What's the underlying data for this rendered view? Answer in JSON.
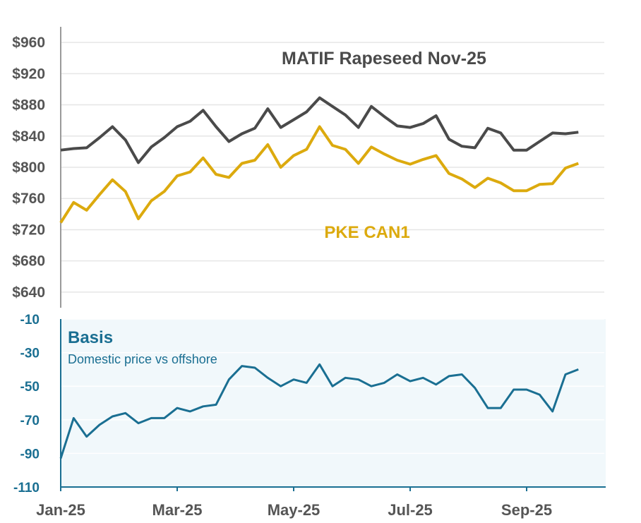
{
  "colors": {
    "matif": "#4a4a4a",
    "pke": "#dcaa0e",
    "basis": "#1a6f92",
    "basis_panel": "#f1f8fb",
    "grid": "#e6e6e6",
    "axis": "#9a9a9a",
    "tick_text": "#555555"
  },
  "chart_data": [
    {
      "type": "line",
      "panel": "prices",
      "title": "",
      "ylim": [
        620,
        980
      ],
      "y_ticks": [
        640,
        680,
        720,
        760,
        800,
        840,
        880,
        920,
        960
      ],
      "y_tick_labels": [
        "$640",
        "$680",
        "$720",
        "$760",
        "$800",
        "$840",
        "$880",
        "$920",
        "$960"
      ],
      "x_index_range": [
        0,
        42
      ],
      "series": [
        {
          "name": "MATIF Rapeseed Nov-25",
          "color_key": "matif",
          "values": [
            822,
            824,
            825,
            838,
            852,
            835,
            806,
            826,
            838,
            852,
            859,
            873,
            852,
            833,
            843,
            850,
            875,
            851,
            861,
            871,
            889,
            878,
            867,
            851,
            878,
            865,
            853,
            851,
            856,
            866,
            836,
            827,
            825,
            850,
            844,
            822,
            822,
            833,
            844,
            843,
            845
          ]
        },
        {
          "name": "PKE CAN1",
          "color_key": "pke",
          "values": [
            729,
            755,
            745,
            765,
            784,
            769,
            734,
            757,
            769,
            789,
            794,
            812,
            791,
            787,
            805,
            809,
            829,
            800,
            815,
            823,
            852,
            828,
            823,
            805,
            826,
            817,
            809,
            804,
            810,
            815,
            792,
            785,
            774,
            786,
            780,
            770,
            770,
            778,
            779,
            799,
            805
          ]
        }
      ]
    },
    {
      "type": "area",
      "panel": "basis",
      "title": "Basis",
      "subtitle": "Domestic price vs offshore",
      "ylim": [
        -110,
        -10
      ],
      "y_ticks": [
        -110,
        -90,
        -70,
        -50,
        -30,
        -10
      ],
      "y_tick_labels": [
        "-110",
        "-90",
        "-70",
        "-50",
        "-30",
        "-10"
      ],
      "x_index_range": [
        0,
        42
      ],
      "series": [
        {
          "name": "Basis",
          "color_key": "basis",
          "values": [
            -93,
            -69,
            -80,
            -73,
            -68,
            -66,
            -72,
            -69,
            -69,
            -63,
            -65,
            -62,
            -61,
            -46,
            -38,
            -39,
            -45,
            -50,
            -46,
            -48,
            -37,
            -50,
            -45,
            -46,
            -50,
            -48,
            -43,
            -47,
            -45,
            -49,
            -44,
            -43,
            -51,
            -63,
            -63,
            -52,
            -52,
            -55,
            -65,
            -43,
            -40
          ]
        }
      ]
    }
  ],
  "x_axis": {
    "tick_labels": [
      "Jan-25",
      "Mar-25",
      "May-25",
      "Jul-25",
      "Sep-25"
    ],
    "tick_index": [
      0,
      9,
      18,
      27,
      36
    ]
  },
  "labels": {
    "matif": "MATIF Rapeseed Nov-25",
    "pke": "PKE CAN1",
    "basis_title": "Basis",
    "basis_subtitle": "Domestic price vs offshore"
  }
}
